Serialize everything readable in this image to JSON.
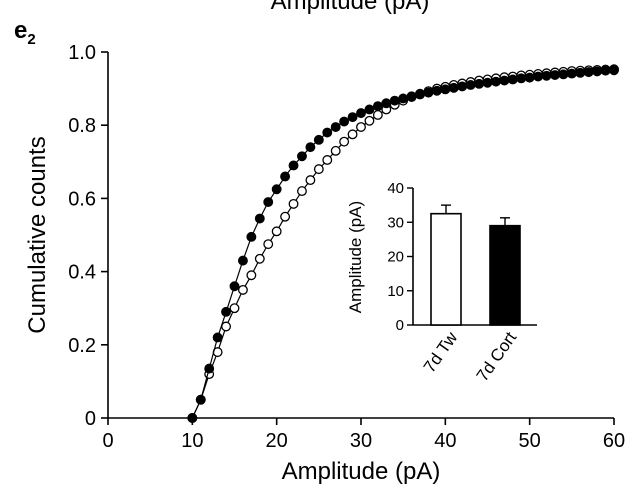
{
  "page": {
    "top_title_fragment": "Amplitude (pA)",
    "panel_label": "e",
    "panel_label_sub": "2"
  },
  "chart_data": [
    {
      "type": "line",
      "title": "",
      "xlabel": "Amplitude (pA)",
      "ylabel": "Cumulative counts",
      "xlim": [
        0,
        60
      ],
      "ylim": [
        0,
        1.0
      ],
      "x_ticks": [
        "0",
        "10",
        "20",
        "30",
        "40",
        "50",
        "60"
      ],
      "y_ticks": [
        "0",
        "0.2",
        "0.4",
        "0.6",
        "0.8",
        "1.0"
      ],
      "grid": false,
      "legend": "none",
      "series": [
        {
          "marker": "open-circle",
          "color": "#000000",
          "x": [
            10,
            11,
            12,
            13,
            14,
            15,
            16,
            17,
            18,
            19,
            20,
            21,
            22,
            23,
            24,
            25,
            26,
            27,
            28,
            29,
            30,
            31,
            32,
            33,
            34,
            35,
            36,
            37,
            38,
            39,
            40,
            41,
            42,
            43,
            44,
            45,
            46,
            47,
            48,
            49,
            50,
            51,
            52,
            53,
            54,
            55,
            56,
            57,
            58,
            59,
            60
          ],
          "y": [
            0.0,
            0.05,
            0.12,
            0.18,
            0.25,
            0.3,
            0.35,
            0.39,
            0.435,
            0.475,
            0.51,
            0.55,
            0.585,
            0.62,
            0.65,
            0.68,
            0.705,
            0.73,
            0.755,
            0.775,
            0.795,
            0.812,
            0.828,
            0.843,
            0.856,
            0.867,
            0.877,
            0.886,
            0.893,
            0.9,
            0.905,
            0.91,
            0.914,
            0.918,
            0.922,
            0.925,
            0.928,
            0.931,
            0.933,
            0.936,
            0.938,
            0.94,
            0.942,
            0.944,
            0.946,
            0.948,
            0.949,
            0.95,
            0.951,
            0.952,
            0.953
          ]
        },
        {
          "marker": "filled-circle",
          "color": "#000000",
          "x": [
            10,
            11,
            12,
            13,
            14,
            15,
            16,
            17,
            18,
            19,
            20,
            21,
            22,
            23,
            24,
            25,
            26,
            27,
            28,
            29,
            30,
            31,
            32,
            33,
            34,
            35,
            36,
            37,
            38,
            39,
            40,
            41,
            42,
            43,
            44,
            45,
            46,
            47,
            48,
            49,
            50,
            51,
            52,
            53,
            54,
            55,
            56,
            57,
            58,
            59,
            60
          ],
          "y": [
            0.0,
            0.05,
            0.135,
            0.22,
            0.29,
            0.36,
            0.43,
            0.495,
            0.545,
            0.59,
            0.625,
            0.66,
            0.69,
            0.715,
            0.74,
            0.76,
            0.78,
            0.795,
            0.81,
            0.822,
            0.833,
            0.843,
            0.852,
            0.86,
            0.867,
            0.873,
            0.879,
            0.884,
            0.889,
            0.894,
            0.898,
            0.902,
            0.906,
            0.91,
            0.913,
            0.916,
            0.919,
            0.922,
            0.925,
            0.928,
            0.93,
            0.933,
            0.935,
            0.937,
            0.939,
            0.941,
            0.943,
            0.945,
            0.947,
            0.949,
            0.95
          ]
        }
      ]
    },
    {
      "type": "bar",
      "title": "",
      "xlabel": "",
      "ylabel": "Amplitude (pA)",
      "ylim": [
        0,
        40
      ],
      "y_ticks": [
        "0",
        "10",
        "20",
        "30",
        "40"
      ],
      "categories": [
        "7d Tw",
        "7d Cort"
      ],
      "values": [
        32.5,
        29
      ],
      "errors": [
        2.5,
        2.3
      ],
      "bar_colors": [
        "#ffffff",
        "#000000"
      ]
    }
  ]
}
